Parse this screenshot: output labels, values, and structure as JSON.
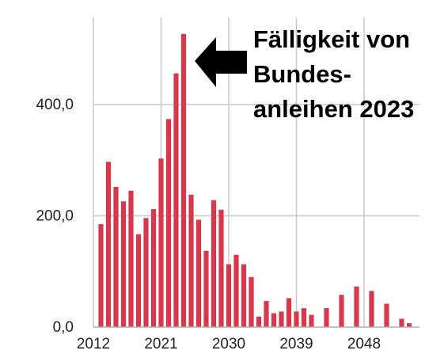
{
  "chart_data": {
    "type": "bar",
    "title": "",
    "xlabel": "",
    "ylabel": "",
    "x": [
      2013,
      2014,
      2015,
      2016,
      2017,
      2018,
      2019,
      2020,
      2021,
      2022,
      2023,
      2024,
      2025,
      2026,
      2027,
      2028,
      2029,
      2030,
      2031,
      2032,
      2033,
      2034,
      2035,
      2036,
      2037,
      2038,
      2039,
      2040,
      2041,
      2043,
      2045,
      2047,
      2049,
      2051,
      2053,
      2054
    ],
    "values": [
      185,
      297,
      252,
      226,
      245,
      167,
      196,
      212,
      303,
      374,
      456,
      527,
      238,
      193,
      137,
      228,
      211,
      113,
      130,
      113,
      90,
      19,
      47,
      25,
      28,
      52,
      28,
      34,
      22,
      34,
      58,
      73,
      65,
      42,
      15,
      7
    ],
    "xlim": [
      2012,
      2056
    ],
    "ylim": [
      0,
      560
    ],
    "xticks": [
      2012,
      2021,
      2030,
      2039,
      2048
    ],
    "xtick_labels": [
      "2012",
      "2021",
      "2030",
      "2039",
      "2048"
    ],
    "yticks": [
      0,
      200,
      400
    ],
    "ytick_labels": [
      "0,0",
      "200,0",
      "400,0"
    ],
    "grid": true,
    "legend": "none",
    "bar_color": "#d9374b",
    "annotation": {
      "lines": [
        "Fälligkeit von",
        "Bundes-",
        "anleihen 2023"
      ],
      "arrow_color": "#000000"
    }
  }
}
